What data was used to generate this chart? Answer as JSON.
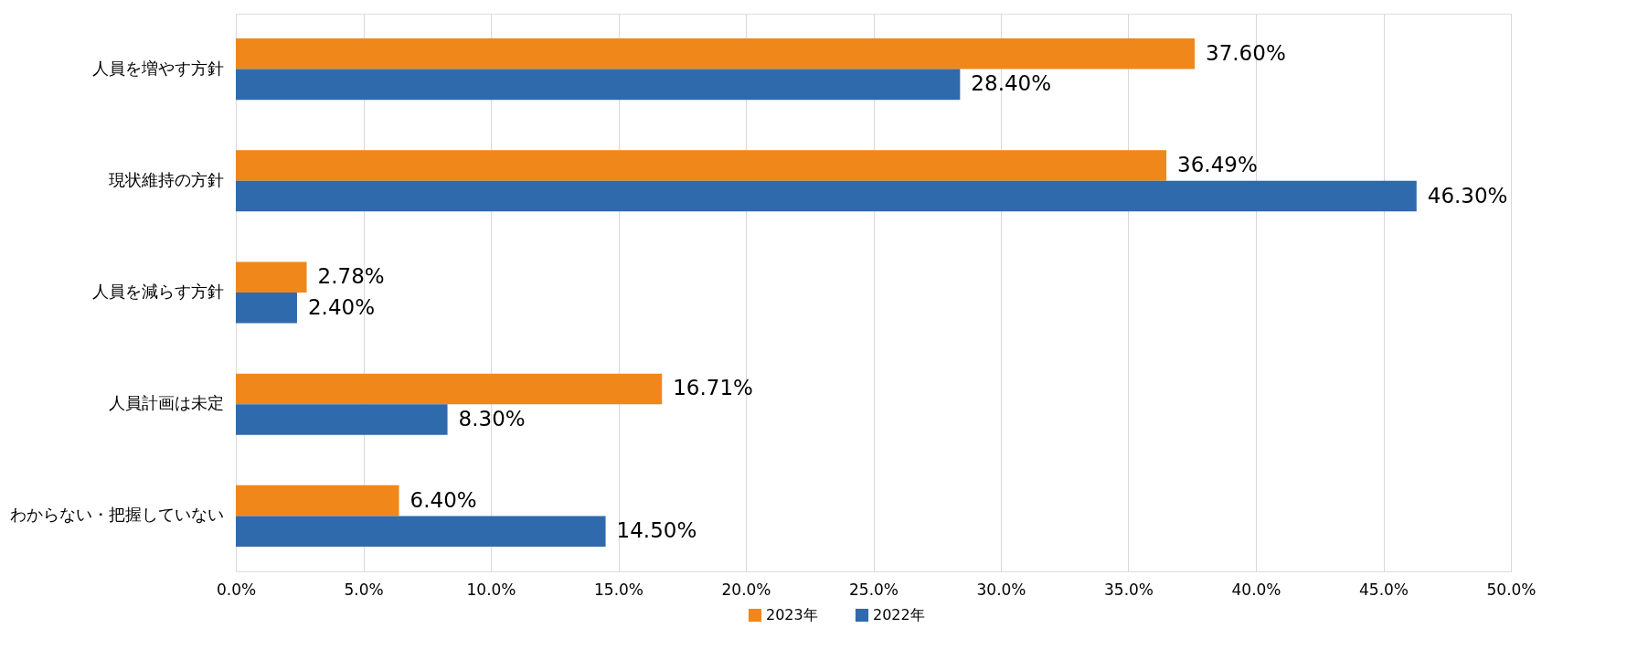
{
  "chart_data": {
    "type": "bar",
    "orientation": "horizontal",
    "categories": [
      "人員を増やす方針",
      "現状維持の方針",
      "人員を減らす方針",
      "人員計画は未定",
      "わからない・把握していない"
    ],
    "series": [
      {
        "name": "2023年",
        "color": "#f0871a",
        "values": [
          37.6,
          36.49,
          2.78,
          16.71,
          6.4
        ],
        "value_labels": [
          "37.60%",
          "36.49%",
          "2.78%",
          "16.71%",
          "6.40%"
        ]
      },
      {
        "name": "2022年",
        "color": "#2f6aad",
        "values": [
          28.4,
          46.3,
          2.4,
          8.3,
          14.5
        ],
        "value_labels": [
          "28.40%",
          "46.30%",
          "2.40%",
          "8.30%",
          "14.50%"
        ]
      }
    ],
    "xlim": [
      0,
      50
    ],
    "xticks": [
      {
        "value": 0,
        "label": "0.0%"
      },
      {
        "value": 5,
        "label": "5.0%"
      },
      {
        "value": 10,
        "label": "10.0%"
      },
      {
        "value": 15,
        "label": "15.0%"
      },
      {
        "value": 20,
        "label": "20.0%"
      },
      {
        "value": 25,
        "label": "25.0%"
      },
      {
        "value": 30,
        "label": "30.0%"
      },
      {
        "value": 35,
        "label": "35.0%"
      },
      {
        "value": 40,
        "label": "40.0%"
      },
      {
        "value": 45,
        "label": "45.0%"
      },
      {
        "value": 50,
        "label": "50.0%"
      }
    ],
    "grid": "x",
    "legend": "bottom"
  }
}
